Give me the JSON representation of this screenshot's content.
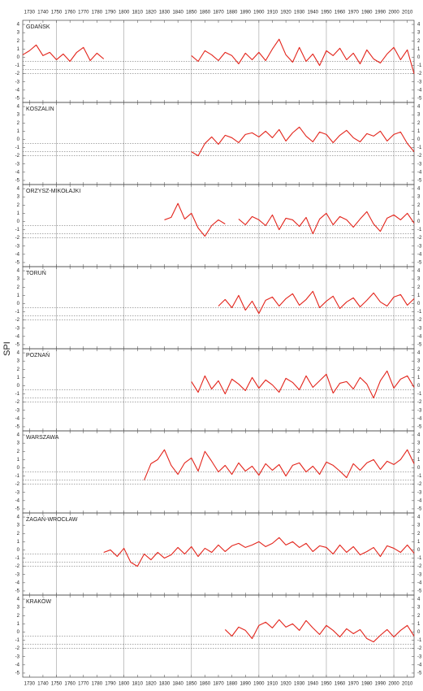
{
  "chart_data": [
    {
      "type": "line",
      "title": "GDAŃSK",
      "ylabel": "SPI",
      "x": [
        1725,
        1730,
        1735,
        1740,
        1745,
        1750,
        1755,
        1760,
        1765,
        1770,
        1775,
        1780,
        1785,
        1790,
        1795,
        1800,
        1805,
        1810,
        1815,
        1820,
        1825,
        1830,
        1835,
        1840,
        1845,
        1850,
        1855,
        1860,
        1865,
        1870,
        1875,
        1880,
        1885,
        1890,
        1895,
        1900,
        1905,
        1910,
        1915,
        1920,
        1925,
        1930,
        1935,
        1940,
        1945,
        1950,
        1955,
        1960,
        1965,
        1970,
        1975,
        1980,
        1985,
        1990,
        1995,
        2000,
        2005,
        2010,
        2015
      ],
      "series": [
        {
          "color": "#e3241b",
          "values": [
            0.3,
            0.8,
            1.5,
            0.2,
            0.6,
            -0.3,
            0.4,
            -0.5,
            0.6,
            1.2,
            -0.4,
            0.5,
            -0.2,
            null,
            null,
            null,
            null,
            null,
            null,
            null,
            null,
            null,
            null,
            null,
            null,
            0.2,
            -0.5,
            0.8,
            0.3,
            -0.4,
            0.6,
            0.2,
            -0.8,
            0.5,
            -0.3,
            0.6,
            -0.4,
            1.0,
            2.2,
            0.3,
            -0.6,
            1.2,
            -0.5,
            0.4,
            -1.0,
            0.8,
            0.2,
            1.1,
            -0.3,
            0.5,
            -0.8,
            0.9,
            -0.2,
            -0.7,
            0.4,
            1.2,
            -0.3,
            0.9,
            -2.0
          ]
        }
      ],
      "xlim": [
        1725,
        2015
      ],
      "ylim": [
        -5.5,
        4.5
      ],
      "yticks": [
        -5,
        -4,
        -3,
        -2,
        -1,
        0,
        1,
        2,
        3,
        4
      ],
      "xticks": [
        1730,
        1740,
        1750,
        1760,
        1770,
        1780,
        1790,
        1800,
        1810,
        1820,
        1830,
        1840,
        1850,
        1860,
        1870,
        1880,
        1890,
        1900,
        1910,
        1920,
        1930,
        1940,
        1950,
        1960,
        1970,
        1980,
        1990,
        2000,
        2010
      ],
      "x_grid": [
        1750,
        1800,
        1850,
        1900,
        1950,
        2000
      ],
      "reference_lines": [
        -0.5,
        -1.5,
        -2
      ]
    },
    {
      "type": "line",
      "title": "KOSZALIN",
      "x": [
        1850,
        1855,
        1860,
        1865,
        1870,
        1875,
        1880,
        1885,
        1890,
        1895,
        1900,
        1905,
        1910,
        1915,
        1920,
        1925,
        1930,
        1935,
        1940,
        1945,
        1950,
        1955,
        1960,
        1965,
        1970,
        1975,
        1980,
        1985,
        1990,
        1995,
        2000,
        2005,
        2010,
        2015
      ],
      "series": [
        {
          "color": "#e3241b",
          "values": [
            -1.5,
            -2.0,
            -0.5,
            0.3,
            -0.6,
            0.5,
            0.2,
            -0.4,
            0.6,
            0.8,
            0.3,
            1.0,
            0.2,
            1.2,
            -0.2,
            0.8,
            1.5,
            0.4,
            -0.3,
            0.9,
            0.6,
            -0.4,
            0.5,
            1.1,
            0.2,
            -0.3,
            0.7,
            0.4,
            1.0,
            -0.2,
            0.6,
            0.9,
            -0.5,
            -1.5
          ]
        }
      ],
      "xlim": [
        1725,
        2015
      ],
      "ylim": [
        -5.5,
        4.5
      ],
      "yticks": [
        -5,
        -4,
        -3,
        -2,
        -1,
        0,
        1,
        2,
        3,
        4
      ],
      "xticks": [
        1730,
        1740,
        1750,
        1760,
        1770,
        1780,
        1790,
        1800,
        1810,
        1820,
        1830,
        1840,
        1850,
        1860,
        1870,
        1880,
        1890,
        1900,
        1910,
        1920,
        1930,
        1940,
        1950,
        1960,
        1970,
        1980,
        1990,
        2000,
        2010
      ],
      "x_grid": [
        1750,
        1800,
        1850,
        1900,
        1950,
        2000
      ],
      "reference_lines": [
        -0.5,
        -1.5,
        -2
      ]
    },
    {
      "type": "line",
      "title": "ORZYSZ-MIKOŁAJKI",
      "x": [
        1830,
        1835,
        1840,
        1845,
        1850,
        1855,
        1860,
        1865,
        1870,
        1875,
        1880,
        1885,
        1890,
        1895,
        1900,
        1905,
        1910,
        1915,
        1920,
        1925,
        1930,
        1935,
        1940,
        1945,
        1950,
        1955,
        1960,
        1965,
        1970,
        1975,
        1980,
        1985,
        1990,
        1995,
        2000,
        2005,
        2010,
        2015
      ],
      "series": [
        {
          "color": "#e3241b",
          "values": [
            0.2,
            0.5,
            2.2,
            0.3,
            1.0,
            -0.8,
            -1.8,
            -0.5,
            0.2,
            -0.3,
            null,
            0.3,
            -0.4,
            0.6,
            0.2,
            -0.5,
            0.8,
            -1.0,
            0.4,
            0.2,
            -0.6,
            0.5,
            -1.5,
            0.3,
            1.0,
            -0.4,
            0.6,
            0.2,
            -0.7,
            0.3,
            1.2,
            -0.3,
            -1.2,
            0.4,
            0.8,
            0.2,
            1.0,
            -0.2
          ]
        }
      ],
      "xlim": [
        1725,
        2015
      ],
      "ylim": [
        -5.5,
        4.5
      ],
      "yticks": [
        -5,
        -4,
        -3,
        -2,
        -1,
        0,
        1,
        2,
        3,
        4
      ],
      "xticks": [
        1730,
        1740,
        1750,
        1760,
        1770,
        1780,
        1790,
        1800,
        1810,
        1820,
        1830,
        1840,
        1850,
        1860,
        1870,
        1880,
        1890,
        1900,
        1910,
        1920,
        1930,
        1940,
        1950,
        1960,
        1970,
        1980,
        1990,
        2000,
        2010
      ],
      "x_grid": [
        1750,
        1800,
        1850,
        1900,
        1950,
        2000
      ],
      "reference_lines": [
        -0.5,
        -1.5,
        -2
      ]
    },
    {
      "type": "line",
      "title": "TORUŃ",
      "x": [
        1870,
        1875,
        1880,
        1885,
        1890,
        1895,
        1900,
        1905,
        1910,
        1915,
        1920,
        1925,
        1930,
        1935,
        1940,
        1945,
        1950,
        1955,
        1960,
        1965,
        1970,
        1975,
        1980,
        1985,
        1990,
        1995,
        2000,
        2005,
        2010,
        2015
      ],
      "series": [
        {
          "color": "#e3241b",
          "values": [
            -0.3,
            0.5,
            -0.5,
            1.0,
            -0.8,
            0.3,
            -1.2,
            0.4,
            0.8,
            -0.3,
            0.6,
            1.2,
            -0.2,
            0.5,
            1.5,
            -0.5,
            0.3,
            0.9,
            -0.6,
            0.2,
            0.7,
            -0.4,
            0.4,
            1.3,
            0.2,
            -0.3,
            0.8,
            1.1,
            -0.2,
            0.6
          ]
        }
      ],
      "xlim": [
        1725,
        2015
      ],
      "ylim": [
        -5.5,
        4.5
      ],
      "yticks": [
        -5,
        -4,
        -3,
        -2,
        -1,
        0,
        1,
        2,
        3,
        4
      ],
      "xticks": [
        1730,
        1740,
        1750,
        1760,
        1770,
        1780,
        1790,
        1800,
        1810,
        1820,
        1830,
        1840,
        1850,
        1860,
        1870,
        1880,
        1890,
        1900,
        1910,
        1920,
        1930,
        1940,
        1950,
        1960,
        1970,
        1980,
        1990,
        2000,
        2010
      ],
      "x_grid": [
        1750,
        1800,
        1850,
        1900,
        1950,
        2000
      ],
      "reference_lines": [
        -0.5,
        -1.5,
        -2
      ]
    },
    {
      "type": "line",
      "title": "POZNAŃ",
      "x": [
        1850,
        1855,
        1860,
        1865,
        1870,
        1875,
        1880,
        1885,
        1890,
        1895,
        1900,
        1905,
        1910,
        1915,
        1920,
        1925,
        1930,
        1935,
        1940,
        1945,
        1950,
        1955,
        1960,
        1965,
        1970,
        1975,
        1980,
        1985,
        1990,
        1995,
        2000,
        2005,
        2010,
        2015
      ],
      "series": [
        {
          "color": "#e3241b",
          "values": [
            0.5,
            -0.8,
            1.2,
            -0.4,
            0.6,
            -1.0,
            0.8,
            0.2,
            -0.6,
            1.0,
            -0.3,
            0.7,
            0.1,
            -0.8,
            0.9,
            0.4,
            -0.5,
            1.2,
            -0.2,
            0.6,
            1.4,
            -0.9,
            0.3,
            0.5,
            -0.4,
            1.0,
            0.2,
            -1.5,
            0.6,
            1.8,
            -0.3,
            0.8,
            1.2,
            -0.2
          ]
        }
      ],
      "xlim": [
        1725,
        2015
      ],
      "ylim": [
        -5.5,
        4.5
      ],
      "yticks": [
        -5,
        -4,
        -3,
        -2,
        -1,
        0,
        1,
        2,
        3,
        4
      ],
      "xticks": [
        1730,
        1740,
        1750,
        1760,
        1770,
        1780,
        1790,
        1800,
        1810,
        1820,
        1830,
        1840,
        1850,
        1860,
        1870,
        1880,
        1890,
        1900,
        1910,
        1920,
        1930,
        1940,
        1950,
        1960,
        1970,
        1980,
        1990,
        2000,
        2010
      ],
      "x_grid": [
        1750,
        1800,
        1850,
        1900,
        1950,
        2000
      ],
      "reference_lines": [
        -0.5,
        -1.5,
        -2
      ]
    },
    {
      "type": "line",
      "title": "WARSZAWA",
      "x": [
        1815,
        1820,
        1825,
        1830,
        1835,
        1840,
        1845,
        1850,
        1855,
        1860,
        1865,
        1870,
        1875,
        1880,
        1885,
        1890,
        1895,
        1900,
        1905,
        1910,
        1915,
        1920,
        1925,
        1930,
        1935,
        1940,
        1945,
        1950,
        1955,
        1960,
        1965,
        1970,
        1975,
        1980,
        1985,
        1990,
        1995,
        2000,
        2005,
        2010,
        2015
      ],
      "series": [
        {
          "color": "#e3241b",
          "values": [
            -1.5,
            0.5,
            1.0,
            2.2,
            0.3,
            -0.8,
            0.6,
            1.2,
            -0.4,
            2.0,
            0.8,
            -0.5,
            0.3,
            -0.8,
            0.6,
            -0.4,
            0.2,
            -0.9,
            0.5,
            -0.3,
            0.4,
            -1.0,
            0.3,
            0.6,
            -0.5,
            0.2,
            -0.8,
            0.7,
            0.3,
            -0.4,
            -1.2,
            0.5,
            -0.3,
            0.6,
            1.0,
            -0.2,
            0.8,
            0.4,
            1.0,
            2.2,
            0.5
          ]
        }
      ],
      "xlim": [
        1725,
        2015
      ],
      "ylim": [
        -5.5,
        4.5
      ],
      "yticks": [
        -5,
        -4,
        -3,
        -2,
        -1,
        0,
        1,
        2,
        3,
        4
      ],
      "xticks": [
        1730,
        1740,
        1750,
        1760,
        1770,
        1780,
        1790,
        1800,
        1810,
        1820,
        1830,
        1840,
        1850,
        1860,
        1870,
        1880,
        1890,
        1900,
        1910,
        1920,
        1930,
        1940,
        1950,
        1960,
        1970,
        1980,
        1990,
        2000,
        2010
      ],
      "x_grid": [
        1750,
        1800,
        1850,
        1900,
        1950,
        2000
      ],
      "reference_lines": [
        -0.5,
        -1.5,
        -2
      ]
    },
    {
      "type": "line",
      "title": "ŻAGAŃ-WROCŁAW",
      "x": [
        1785,
        1790,
        1795,
        1800,
        1805,
        1810,
        1815,
        1820,
        1825,
        1830,
        1835,
        1840,
        1845,
        1850,
        1855,
        1860,
        1865,
        1870,
        1875,
        1880,
        1885,
        1890,
        1895,
        1900,
        1905,
        1910,
        1915,
        1920,
        1925,
        1930,
        1935,
        1940,
        1945,
        1950,
        1955,
        1960,
        1965,
        1970,
        1975,
        1980,
        1985,
        1990,
        1995,
        2000,
        2005,
        2010,
        2015
      ],
      "series": [
        {
          "color": "#e3241b",
          "values": [
            -0.3,
            0.0,
            -0.8,
            0.2,
            -1.5,
            -2.0,
            -0.5,
            -1.2,
            -0.3,
            -1.0,
            -0.6,
            0.3,
            -0.5,
            0.4,
            -0.8,
            0.2,
            -0.3,
            0.6,
            -0.2,
            0.5,
            0.8,
            0.3,
            0.6,
            1.0,
            0.4,
            0.8,
            1.5,
            0.6,
            1.0,
            0.3,
            0.8,
            -0.2,
            0.5,
            0.3,
            -0.5,
            0.6,
            -0.3,
            0.4,
            -0.6,
            -0.2,
            0.3,
            -0.8,
            0.5,
            0.2,
            -0.3,
            0.6,
            -0.4
          ]
        }
      ],
      "xlim": [
        1725,
        2015
      ],
      "ylim": [
        -5.5,
        4.5
      ],
      "yticks": [
        -5,
        -4,
        -3,
        -2,
        -1,
        0,
        1,
        2,
        3,
        4
      ],
      "xticks": [
        1730,
        1740,
        1750,
        1760,
        1770,
        1780,
        1790,
        1800,
        1810,
        1820,
        1830,
        1840,
        1850,
        1860,
        1870,
        1880,
        1890,
        1900,
        1910,
        1920,
        1930,
        1940,
        1950,
        1960,
        1970,
        1980,
        1990,
        2000,
        2010
      ],
      "x_grid": [
        1750,
        1800,
        1850,
        1900,
        1950,
        2000
      ],
      "reference_lines": [
        -0.5,
        -1.5,
        -2
      ]
    },
    {
      "type": "line",
      "title": "KRAKÓW",
      "x": [
        1875,
        1880,
        1885,
        1890,
        1895,
        1900,
        1905,
        1910,
        1915,
        1920,
        1925,
        1930,
        1935,
        1940,
        1945,
        1950,
        1955,
        1960,
        1965,
        1970,
        1975,
        1980,
        1985,
        1990,
        1995,
        2000,
        2005,
        2010,
        2015
      ],
      "series": [
        {
          "color": "#e3241b",
          "values": [
            0.3,
            -0.5,
            0.6,
            0.2,
            -0.8,
            0.8,
            1.2,
            0.5,
            1.5,
            0.6,
            1.0,
            0.2,
            1.4,
            0.5,
            -0.3,
            0.8,
            0.2,
            -0.6,
            0.4,
            -0.2,
            0.3,
            -0.8,
            -1.2,
            -0.4,
            0.3,
            -0.6,
            0.2,
            0.8,
            -0.5
          ]
        }
      ],
      "xlim": [
        1725,
        2015
      ],
      "ylim": [
        -5.5,
        4.5
      ],
      "yticks": [
        -5,
        -4,
        -3,
        -2,
        -1,
        0,
        1,
        2,
        3,
        4
      ],
      "xticks": [
        1730,
        1740,
        1750,
        1760,
        1770,
        1780,
        1790,
        1800,
        1810,
        1820,
        1830,
        1840,
        1850,
        1860,
        1870,
        1880,
        1890,
        1900,
        1910,
        1920,
        1930,
        1940,
        1950,
        1960,
        1970,
        1980,
        1990,
        2000,
        2010
      ],
      "x_grid": [
        1750,
        1800,
        1850,
        1900,
        1950,
        2000
      ],
      "reference_lines": [
        -0.5,
        -1.5,
        -2
      ]
    }
  ]
}
